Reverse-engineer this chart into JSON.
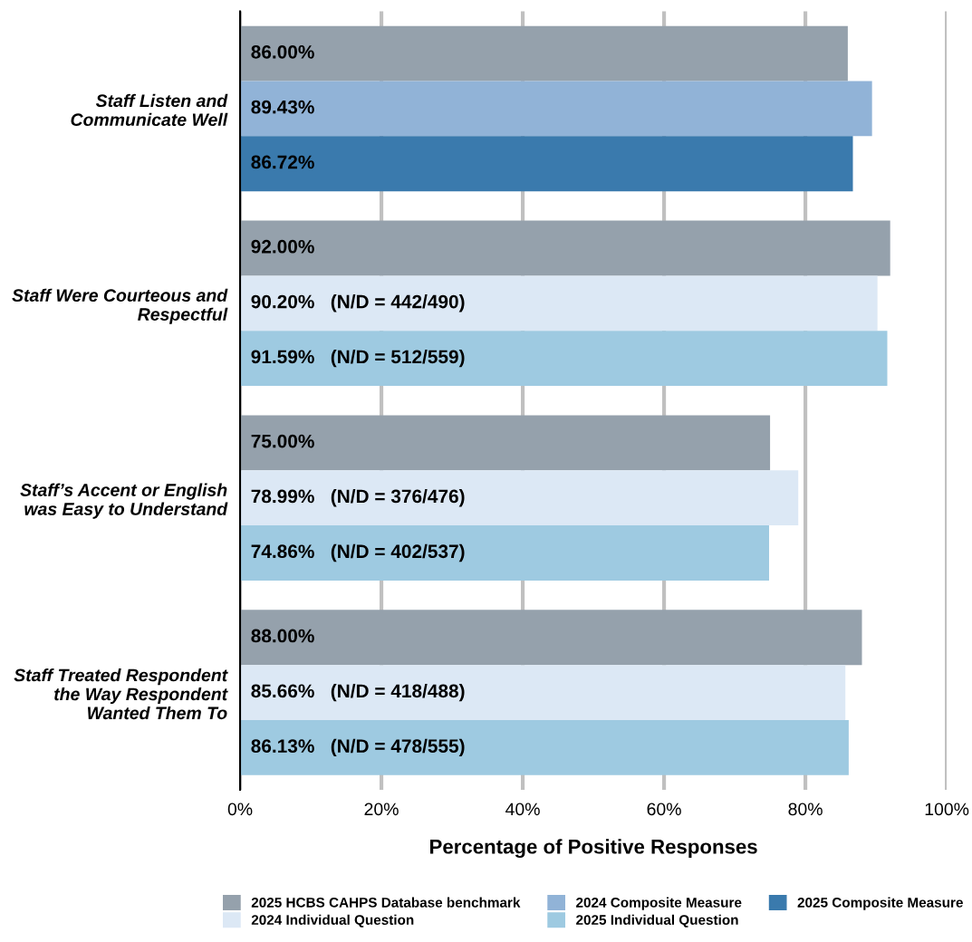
{
  "chart_data": {
    "type": "bar",
    "orientation": "horizontal",
    "xlabel": "Percentage of Positive Responses",
    "categories": [
      "Staff Listen and\nCommunicate Well",
      "Staff Were Courteous and\nRespectful",
      "Staff’s Accent or English\nwas Easy to Understand",
      "Staff Treated Respondent\nthe Way Respondent\nWanted Them To"
    ],
    "series": [
      {
        "name": "2025 HCBS CAHPS Database benchmark",
        "color": "#95a1ac",
        "values": [
          86.0,
          92.0,
          75.0,
          88.0
        ],
        "value_labels": [
          "86.00%",
          "92.00%",
          "75.00%",
          "88.00%"
        ]
      },
      {
        "name": "2024 Composite Measure",
        "color": "#91b3d7",
        "values": [
          89.43,
          null,
          null,
          null
        ],
        "value_labels": [
          "89.43%",
          null,
          null,
          null
        ]
      },
      {
        "name": "2025 Composite Measure",
        "color": "#3a7aad",
        "values": [
          86.72,
          null,
          null,
          null
        ],
        "value_labels": [
          "86.72%",
          null,
          null,
          null
        ]
      },
      {
        "name": "2024 Individual Question",
        "color": "#dce8f5",
        "values": [
          null,
          90.2,
          78.99,
          85.66
        ],
        "value_labels": [
          null,
          "90.20%   (N/D = 442/490)",
          "78.99%   (N/D = 376/476)",
          "85.66%   (N/D = 418/488)"
        ]
      },
      {
        "name": "2025 Individual Question",
        "color": "#9ecae1",
        "values": [
          null,
          91.59,
          74.86,
          86.13
        ],
        "value_labels": [
          null,
          "91.59%   (N/D = 512/559)",
          "74.86%   (N/D = 402/537)",
          "86.13%   (N/D = 478/555)"
        ]
      }
    ],
    "xlim": [
      0,
      100
    ],
    "xticks": [
      {
        "value": 0,
        "label": "0%"
      },
      {
        "value": 20,
        "label": "20%"
      },
      {
        "value": 40,
        "label": "40%"
      },
      {
        "value": 60,
        "label": "60%"
      },
      {
        "value": 80,
        "label": "80%"
      },
      {
        "value": 100,
        "label": "100%"
      }
    ],
    "grid": "x",
    "legend": "bottom"
  }
}
